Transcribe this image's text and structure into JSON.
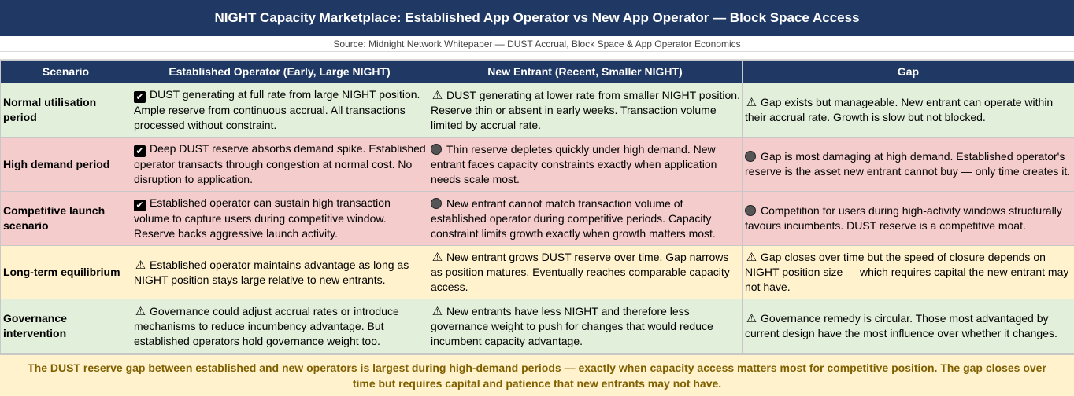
{
  "title": "NIGHT Capacity Marketplace: Established App Operator vs New App Operator — Block Space Access",
  "source": "Source: Midnight Network Whitepaper — DUST Accrual, Block Space & App Operator Economics",
  "headers": {
    "scenario": "Scenario",
    "established": "Established Operator (Early, Large NIGHT)",
    "new_entrant": "New Entrant (Recent, Smaller NIGHT)",
    "gap": "Gap"
  },
  "rows": [
    {
      "color": "#e2efda",
      "scenario": "Normal utilisation period",
      "established": {
        "icon": "check-icon",
        "text": "DUST generating at full rate from large NIGHT position. Ample reserve from continuous accrual. All transactions processed without constraint."
      },
      "new_entrant": {
        "icon": "warning-icon",
        "text": "DUST generating at lower rate from smaller NIGHT position. Reserve thin or absent in early weeks. Transaction volume limited by accrual rate."
      },
      "gap": {
        "icon": "warning-icon",
        "text": "Gap exists but manageable. New entrant can operate within their accrual rate. Growth is slow but not blocked."
      }
    },
    {
      "color": "#f4cccc",
      "scenario": "High demand period",
      "established": {
        "icon": "check-icon",
        "text": "Deep DUST reserve absorbs demand spike. Established operator transacts through congestion at normal cost. No disruption to application."
      },
      "new_entrant": {
        "icon": "dot-icon",
        "text": "Thin reserve depletes quickly under high demand. New entrant faces capacity constraints exactly when application needs scale most."
      },
      "gap": {
        "icon": "dot-icon",
        "text": "Gap is most damaging at high demand. Established operator's reserve is the asset new entrant cannot buy — only time creates it."
      }
    },
    {
      "color": "#f4cccc",
      "scenario": "Competitive launch scenario",
      "established": {
        "icon": "check-icon",
        "text": "Established operator can sustain high transaction volume to capture users during competitive window. Reserve backs aggressive launch activity."
      },
      "new_entrant": {
        "icon": "dot-icon",
        "text": "New entrant cannot match transaction volume of established operator during competitive periods. Capacity constraint limits growth exactly when growth matters most."
      },
      "gap": {
        "icon": "dot-icon",
        "text": "Competition for users during high-activity windows structurally favours incumbents. DUST reserve is a competitive moat."
      }
    },
    {
      "color": "#fff2cc",
      "scenario": "Long-term equilibrium",
      "established": {
        "icon": "warning-icon",
        "text": "Established operator maintains advantage as long as NIGHT position stays large relative to new entrants."
      },
      "new_entrant": {
        "icon": "warning-icon",
        "text": "New entrant grows DUST reserve over time. Gap narrows as position matures. Eventually reaches comparable capacity access."
      },
      "gap": {
        "icon": "warning-icon",
        "text": "Gap closes over time but the speed of closure depends on NIGHT position size — which requires capital the new entrant may not have."
      }
    },
    {
      "color": "#e2efda",
      "scenario": "Governance intervention",
      "established": {
        "icon": "warning-icon",
        "text": "Governance could adjust accrual rates or introduce mechanisms to reduce incumbency advantage. But established operators hold governance weight too."
      },
      "new_entrant": {
        "icon": "warning-icon",
        "text": "New entrants have less NIGHT and therefore less governance weight to push for changes that would reduce incumbent capacity advantage."
      },
      "gap": {
        "icon": "warning-icon",
        "text": "Governance remedy is circular. Those most advantaged by current design have the most influence over whether it changes."
      }
    }
  ],
  "footer": "The DUST reserve gap between established and new operators is largest during high-demand periods — exactly when capacity access matters most for competitive position. The gap closes over time but requires capital and patience that new entrants may not have."
}
